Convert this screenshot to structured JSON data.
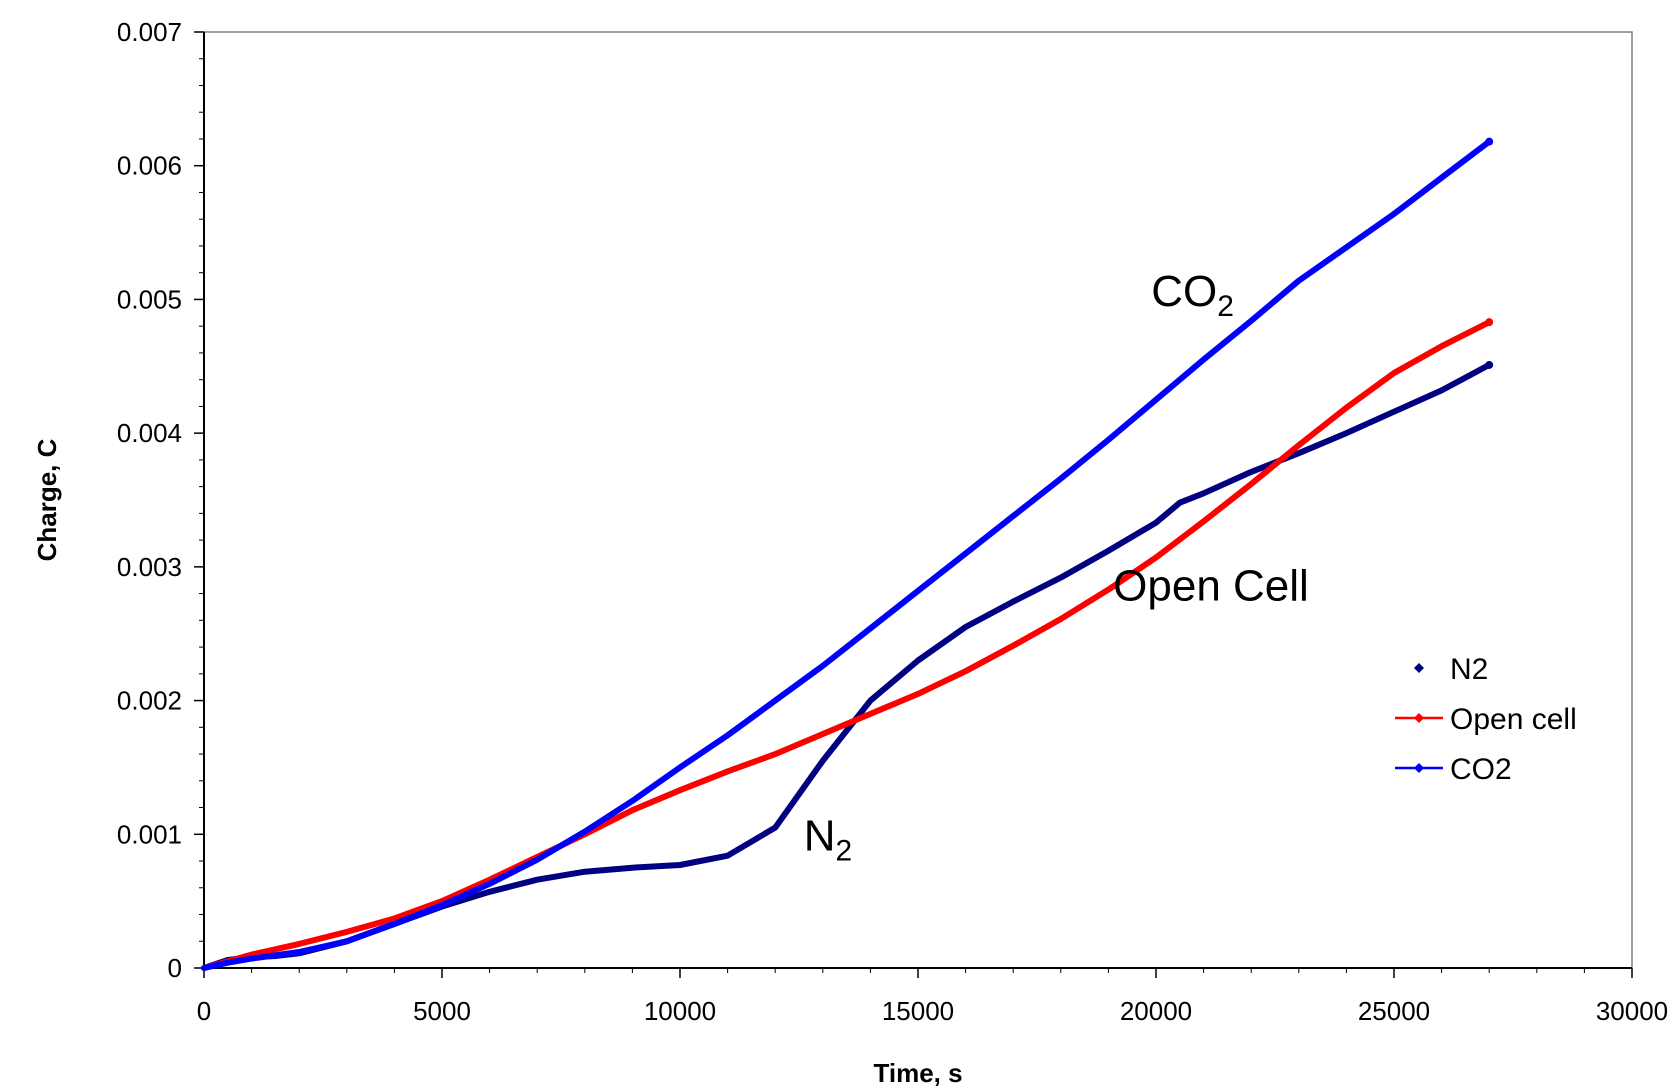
{
  "chart_data": {
    "type": "line",
    "title": "",
    "xlabel": "Time, s",
    "ylabel": "Charge, C",
    "xlim": [
      0,
      30000
    ],
    "ylim": [
      0,
      0.007
    ],
    "x_ticks": [
      0,
      5000,
      10000,
      15000,
      20000,
      25000,
      30000
    ],
    "x_tick_labels": [
      "0",
      "5000",
      "10000",
      "15000",
      "20000",
      "25000",
      "30000"
    ],
    "y_ticks": [
      0,
      0.001,
      0.002,
      0.003,
      0.004,
      0.005,
      0.006,
      0.007
    ],
    "y_tick_labels": [
      "0",
      "0.001",
      "0.002",
      "0.003",
      "0.004",
      "0.005",
      "0.006",
      "0.007"
    ],
    "grid": false,
    "legend_position": "right",
    "series": [
      {
        "name": "N2",
        "color": "#000080",
        "points": [
          [
            0,
            0
          ],
          [
            500,
            6e-05
          ],
          [
            1000,
            8e-05
          ],
          [
            1500,
            9e-05
          ],
          [
            2000,
            0.00011
          ],
          [
            3000,
            0.0002
          ],
          [
            4000,
            0.00033
          ],
          [
            5000,
            0.00046
          ],
          [
            6000,
            0.00057
          ],
          [
            7000,
            0.00066
          ],
          [
            8000,
            0.00072
          ],
          [
            9000,
            0.00075
          ],
          [
            10000,
            0.00077
          ],
          [
            11000,
            0.00084
          ],
          [
            12000,
            0.00105
          ],
          [
            13000,
            0.00155
          ],
          [
            14000,
            0.002
          ],
          [
            15000,
            0.0023
          ],
          [
            16000,
            0.00255
          ],
          [
            17000,
            0.00274
          ],
          [
            18000,
            0.00292
          ],
          [
            19000,
            0.00312
          ],
          [
            20000,
            0.00333
          ],
          [
            20500,
            0.00348
          ],
          [
            21000,
            0.00355
          ],
          [
            22000,
            0.00371
          ],
          [
            23000,
            0.00385
          ],
          [
            24000,
            0.004
          ],
          [
            25000,
            0.00416
          ],
          [
            26000,
            0.00432
          ],
          [
            27000,
            0.00451
          ]
        ]
      },
      {
        "name": "Open cell",
        "color": "#ff0000",
        "points": [
          [
            0,
            0
          ],
          [
            1000,
            0.0001
          ],
          [
            2000,
            0.00018
          ],
          [
            3000,
            0.00027
          ],
          [
            4000,
            0.00037
          ],
          [
            5000,
            0.0005
          ],
          [
            6000,
            0.00066
          ],
          [
            7000,
            0.00083
          ],
          [
            8000,
            0.001
          ],
          [
            9000,
            0.00118
          ],
          [
            10000,
            0.00133
          ],
          [
            11000,
            0.00147
          ],
          [
            12000,
            0.0016
          ],
          [
            13000,
            0.00175
          ],
          [
            14000,
            0.0019
          ],
          [
            15000,
            0.00205
          ],
          [
            16000,
            0.00222
          ],
          [
            17000,
            0.00241
          ],
          [
            18000,
            0.00261
          ],
          [
            19000,
            0.00283
          ],
          [
            20000,
            0.00307
          ],
          [
            21000,
            0.00334
          ],
          [
            22000,
            0.00362
          ],
          [
            23000,
            0.00391
          ],
          [
            24000,
            0.00419
          ],
          [
            25000,
            0.00445
          ],
          [
            26000,
            0.00465
          ],
          [
            27000,
            0.00483
          ]
        ]
      },
      {
        "name": "CO2",
        "color": "#0000ff",
        "points": [
          [
            0,
            0
          ],
          [
            500,
            4e-05
          ],
          [
            1000,
            7e-05
          ],
          [
            2000,
            0.00012
          ],
          [
            3000,
            0.0002
          ],
          [
            4000,
            0.00033
          ],
          [
            5000,
            0.00047
          ],
          [
            6000,
            0.00063
          ],
          [
            7000,
            0.00081
          ],
          [
            8000,
            0.00102
          ],
          [
            9000,
            0.00125
          ],
          [
            10000,
            0.0015
          ],
          [
            11000,
            0.00174
          ],
          [
            12000,
            0.002
          ],
          [
            13000,
            0.00226
          ],
          [
            14000,
            0.00254
          ],
          [
            15000,
            0.00282
          ],
          [
            16000,
            0.0031
          ],
          [
            17000,
            0.00338
          ],
          [
            18000,
            0.00366
          ],
          [
            19000,
            0.00395
          ],
          [
            20000,
            0.00425
          ],
          [
            21000,
            0.00455
          ],
          [
            22000,
            0.00484
          ],
          [
            23000,
            0.00514
          ],
          [
            24000,
            0.00539
          ],
          [
            25000,
            0.00564
          ],
          [
            26000,
            0.00591
          ],
          [
            27000,
            0.00618
          ]
        ]
      }
    ],
    "annotations": [
      {
        "name": "annotation-co2",
        "base": "CO",
        "sub": "2",
        "x": 19900,
        "y": 0.00495
      },
      {
        "name": "annotation-open-cell",
        "base": "Open Cell",
        "sub": "",
        "x": 19100,
        "y": 0.00275
      },
      {
        "name": "annotation-n2",
        "base": "N",
        "sub": "2",
        "x": 12600,
        "y": 0.00088
      }
    ]
  }
}
